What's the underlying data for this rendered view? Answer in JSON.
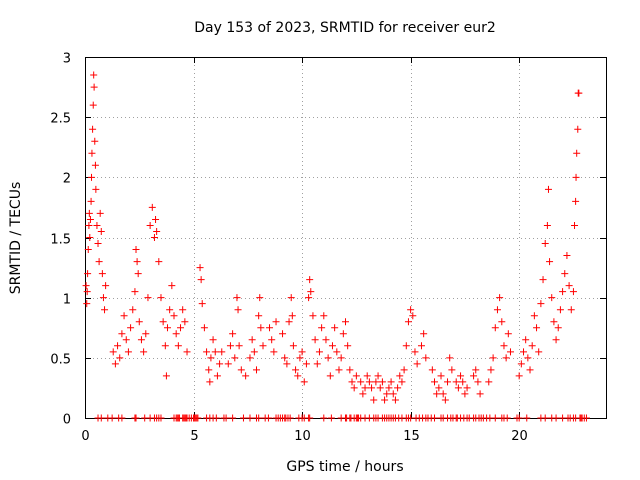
{
  "chart_data": {
    "type": "scatter",
    "title": "Day 153 of 2023, SRMTID for receiver eur2",
    "xlabel": "GPS time / hours",
    "ylabel": "SRMTID / TECUs",
    "xlim": [
      0,
      24
    ],
    "ylim": [
      0,
      3
    ],
    "xticks": [
      0,
      5,
      10,
      15,
      20
    ],
    "xtick_labels": [
      "0",
      "5",
      "10",
      "15",
      "20"
    ],
    "yticks": [
      0,
      0.5,
      1,
      1.5,
      2,
      2.5,
      3
    ],
    "ytick_labels": [
      "0",
      "0.5",
      "1",
      "1.5",
      "2",
      "2.5",
      "3"
    ],
    "grid": true,
    "marker": "+",
    "color": "#ff0000",
    "series": [
      {
        "name": "SRMTID",
        "points": [
          [
            0.05,
            1.1
          ],
          [
            0.08,
            0.95
          ],
          [
            0.1,
            1.05
          ],
          [
            0.12,
            1.2
          ],
          [
            0.15,
            1.4
          ],
          [
            0.18,
            1.6
          ],
          [
            0.2,
            1.7
          ],
          [
            0.22,
            1.5
          ],
          [
            0.25,
            1.65
          ],
          [
            0.28,
            1.8
          ],
          [
            0.3,
            2.0
          ],
          [
            0.32,
            2.2
          ],
          [
            0.35,
            2.4
          ],
          [
            0.38,
            2.6
          ],
          [
            0.4,
            2.85
          ],
          [
            0.42,
            2.75
          ],
          [
            0.45,
            2.3
          ],
          [
            0.48,
            2.1
          ],
          [
            0.5,
            1.9
          ],
          [
            0.55,
            1.6
          ],
          [
            0.6,
            1.45
          ],
          [
            0.65,
            1.3
          ],
          [
            0.7,
            1.7
          ],
          [
            0.75,
            1.55
          ],
          [
            0.8,
            1.2
          ],
          [
            0.85,
            1.0
          ],
          [
            0.9,
            0.9
          ],
          [
            0.95,
            1.1
          ],
          [
            1.3,
            0.55
          ],
          [
            1.4,
            0.45
          ],
          [
            1.5,
            0.6
          ],
          [
            1.6,
            0.5
          ],
          [
            1.7,
            0.7
          ],
          [
            1.8,
            0.85
          ],
          [
            1.9,
            0.65
          ],
          [
            2.0,
            0.55
          ],
          [
            2.1,
            0.75
          ],
          [
            2.2,
            0.9
          ],
          [
            2.3,
            1.05
          ],
          [
            2.35,
            1.4
          ],
          [
            2.4,
            1.3
          ],
          [
            2.45,
            1.2
          ],
          [
            2.5,
            0.8
          ],
          [
            2.6,
            0.65
          ],
          [
            2.7,
            0.55
          ],
          [
            2.8,
            0.7
          ],
          [
            2.9,
            1.0
          ],
          [
            3.0,
            1.6
          ],
          [
            3.1,
            1.75
          ],
          [
            3.2,
            1.5
          ],
          [
            3.25,
            1.65
          ],
          [
            3.3,
            1.55
          ],
          [
            3.4,
            1.3
          ],
          [
            3.5,
            1.0
          ],
          [
            3.6,
            0.8
          ],
          [
            3.7,
            0.6
          ],
          [
            3.75,
            0.35
          ],
          [
            3.8,
            0.75
          ],
          [
            3.9,
            0.9
          ],
          [
            4.0,
            1.1
          ],
          [
            4.1,
            0.85
          ],
          [
            4.2,
            0.7
          ],
          [
            4.3,
            0.6
          ],
          [
            4.4,
            0.75
          ],
          [
            4.5,
            0.9
          ],
          [
            4.6,
            0.8
          ],
          [
            4.7,
            0.55
          ],
          [
            5.3,
            1.25
          ],
          [
            5.35,
            1.15
          ],
          [
            5.4,
            0.95
          ],
          [
            5.5,
            0.75
          ],
          [
            5.6,
            0.55
          ],
          [
            5.7,
            0.4
          ],
          [
            5.75,
            0.3
          ],
          [
            5.8,
            0.5
          ],
          [
            5.9,
            0.65
          ],
          [
            6.0,
            0.55
          ],
          [
            6.1,
            0.35
          ],
          [
            6.2,
            0.45
          ],
          [
            6.3,
            0.55
          ],
          [
            6.6,
            0.45
          ],
          [
            6.7,
            0.6
          ],
          [
            6.8,
            0.7
          ],
          [
            6.9,
            0.5
          ],
          [
            7.0,
            1.0
          ],
          [
            7.05,
            0.9
          ],
          [
            7.1,
            0.6
          ],
          [
            7.2,
            0.4
          ],
          [
            7.4,
            0.35
          ],
          [
            7.6,
            0.5
          ],
          [
            7.7,
            0.65
          ],
          [
            7.8,
            0.55
          ],
          [
            7.9,
            0.4
          ],
          [
            8.0,
            0.85
          ],
          [
            8.05,
            1.0
          ],
          [
            8.1,
            0.75
          ],
          [
            8.2,
            0.6
          ],
          [
            8.5,
            0.75
          ],
          [
            8.6,
            0.65
          ],
          [
            8.7,
            0.55
          ],
          [
            8.8,
            0.8
          ],
          [
            9.1,
            0.7
          ],
          [
            9.2,
            0.5
          ],
          [
            9.3,
            0.45
          ],
          [
            9.4,
            0.8
          ],
          [
            9.5,
            1.0
          ],
          [
            9.55,
            0.85
          ],
          [
            9.6,
            0.6
          ],
          [
            9.7,
            0.4
          ],
          [
            9.8,
            0.35
          ],
          [
            9.9,
            0.5
          ],
          [
            10.0,
            0.55
          ],
          [
            10.1,
            0.3
          ],
          [
            10.2,
            0.45
          ],
          [
            10.3,
            1.0
          ],
          [
            10.35,
            1.15
          ],
          [
            10.4,
            1.05
          ],
          [
            10.5,
            0.85
          ],
          [
            10.6,
            0.65
          ],
          [
            10.7,
            0.45
          ],
          [
            10.8,
            0.55
          ],
          [
            10.9,
            0.75
          ],
          [
            11.0,
            0.85
          ],
          [
            11.1,
            0.65
          ],
          [
            11.2,
            0.5
          ],
          [
            11.3,
            0.35
          ],
          [
            11.4,
            0.6
          ],
          [
            11.5,
            0.75
          ],
          [
            11.6,
            0.55
          ],
          [
            11.7,
            0.4
          ],
          [
            11.8,
            0.5
          ],
          [
            11.9,
            0.7
          ],
          [
            12.0,
            0.8
          ],
          [
            12.1,
            0.6
          ],
          [
            12.2,
            0.4
          ],
          [
            12.3,
            0.3
          ],
          [
            12.4,
            0.25
          ],
          [
            12.5,
            0.35
          ],
          [
            12.7,
            0.3
          ],
          [
            12.8,
            0.2
          ],
          [
            12.9,
            0.25
          ],
          [
            13.0,
            0.35
          ],
          [
            13.1,
            0.3
          ],
          [
            13.2,
            0.25
          ],
          [
            13.3,
            0.15
          ],
          [
            13.4,
            0.3
          ],
          [
            13.5,
            0.35
          ],
          [
            13.6,
            0.25
          ],
          [
            13.7,
            0.3
          ],
          [
            13.8,
            0.15
          ],
          [
            13.9,
            0.2
          ],
          [
            14.0,
            0.25
          ],
          [
            14.1,
            0.3
          ],
          [
            14.2,
            0.2
          ],
          [
            14.3,
            0.15
          ],
          [
            14.4,
            0.25
          ],
          [
            14.5,
            0.35
          ],
          [
            14.6,
            0.3
          ],
          [
            14.7,
            0.4
          ],
          [
            14.8,
            0.6
          ],
          [
            14.9,
            0.8
          ],
          [
            15.0,
            0.9
          ],
          [
            15.1,
            0.85
          ],
          [
            15.2,
            0.55
          ],
          [
            15.3,
            0.45
          ],
          [
            15.5,
            0.6
          ],
          [
            15.6,
            0.7
          ],
          [
            15.7,
            0.5
          ],
          [
            16.0,
            0.4
          ],
          [
            16.1,
            0.3
          ],
          [
            16.2,
            0.2
          ],
          [
            16.3,
            0.25
          ],
          [
            16.4,
            0.35
          ],
          [
            16.5,
            0.2
          ],
          [
            16.6,
            0.15
          ],
          [
            16.7,
            0.3
          ],
          [
            16.8,
            0.5
          ],
          [
            16.9,
            0.4
          ],
          [
            17.1,
            0.3
          ],
          [
            17.2,
            0.25
          ],
          [
            17.3,
            0.35
          ],
          [
            17.4,
            0.3
          ],
          [
            17.5,
            0.2
          ],
          [
            17.6,
            0.25
          ],
          [
            17.9,
            0.35
          ],
          [
            18.0,
            0.4
          ],
          [
            18.1,
            0.3
          ],
          [
            18.2,
            0.2
          ],
          [
            18.6,
            0.3
          ],
          [
            18.7,
            0.4
          ],
          [
            18.8,
            0.5
          ],
          [
            18.9,
            0.75
          ],
          [
            19.0,
            0.9
          ],
          [
            19.1,
            1.0
          ],
          [
            19.2,
            0.8
          ],
          [
            19.3,
            0.6
          ],
          [
            19.4,
            0.5
          ],
          [
            19.5,
            0.7
          ],
          [
            19.6,
            0.55
          ],
          [
            20.0,
            0.35
          ],
          [
            20.1,
            0.45
          ],
          [
            20.2,
            0.55
          ],
          [
            20.3,
            0.65
          ],
          [
            20.4,
            0.5
          ],
          [
            20.5,
            0.4
          ],
          [
            20.6,
            0.6
          ],
          [
            20.7,
            0.85
          ],
          [
            20.8,
            0.75
          ],
          [
            20.9,
            0.55
          ],
          [
            21.0,
            0.95
          ],
          [
            21.1,
            1.15
          ],
          [
            21.2,
            1.45
          ],
          [
            21.3,
            1.6
          ],
          [
            21.35,
            1.9
          ],
          [
            21.4,
            1.3
          ],
          [
            21.5,
            1.0
          ],
          [
            21.6,
            0.8
          ],
          [
            21.7,
            0.65
          ],
          [
            21.8,
            0.75
          ],
          [
            21.9,
            0.9
          ],
          [
            22.0,
            1.05
          ],
          [
            22.1,
            1.2
          ],
          [
            22.2,
            1.35
          ],
          [
            22.3,
            1.1
          ],
          [
            22.4,
            0.9
          ],
          [
            22.5,
            1.05
          ],
          [
            22.55,
            1.6
          ],
          [
            22.6,
            1.8
          ],
          [
            22.62,
            2.0
          ],
          [
            22.65,
            2.2
          ],
          [
            22.7,
            2.4
          ],
          [
            22.72,
            2.7
          ],
          [
            22.75,
            2.7
          ]
        ]
      }
    ],
    "baseline_x": [
      0.6,
      0.75,
      1.05,
      1.25,
      1.55,
      1.7,
      2.3,
      2.35,
      2.75,
      3.0,
      3.2,
      3.3,
      3.4,
      3.5,
      4.1,
      4.2,
      4.25,
      4.3,
      4.35,
      4.5,
      4.55,
      4.6,
      4.65,
      4.7,
      4.8,
      4.9,
      5.0,
      5.05,
      5.1,
      5.15,
      5.2,
      5.6,
      5.75,
      5.9,
      6.05,
      6.4,
      6.5,
      6.8,
      7.3,
      7.6,
      7.9,
      8.0,
      8.3,
      8.45,
      8.8,
      8.9,
      9.0,
      9.1,
      9.2,
      9.25,
      9.35,
      9.45,
      9.85,
      10.0,
      10.1,
      10.3,
      10.35,
      11.0,
      11.35,
      11.8,
      12.0,
      12.05,
      12.2,
      12.25,
      12.4,
      12.5,
      12.55,
      12.6,
      12.7,
      12.9,
      13.1,
      13.3,
      13.4,
      13.5,
      13.7,
      13.8,
      13.9,
      14.0,
      14.1,
      14.2,
      14.3,
      14.45,
      14.6,
      14.8,
      14.9,
      15.0,
      15.25,
      15.4,
      15.55,
      15.7,
      15.8,
      15.95,
      16.1,
      16.4,
      16.5,
      16.7,
      16.85,
      16.95,
      17.1,
      17.15,
      17.3,
      17.45,
      17.6,
      17.7,
      17.9,
      18.0,
      18.15,
      18.25,
      18.35,
      18.5,
      18.65,
      18.9,
      19.2,
      19.3,
      19.45,
      19.9,
      20.0,
      20.35,
      21.0,
      21.2,
      21.5,
      21.7,
      22.0,
      22.25,
      22.35,
      22.5,
      22.6,
      22.8,
      22.85,
      22.9,
      23.0,
      23.1
    ]
  }
}
